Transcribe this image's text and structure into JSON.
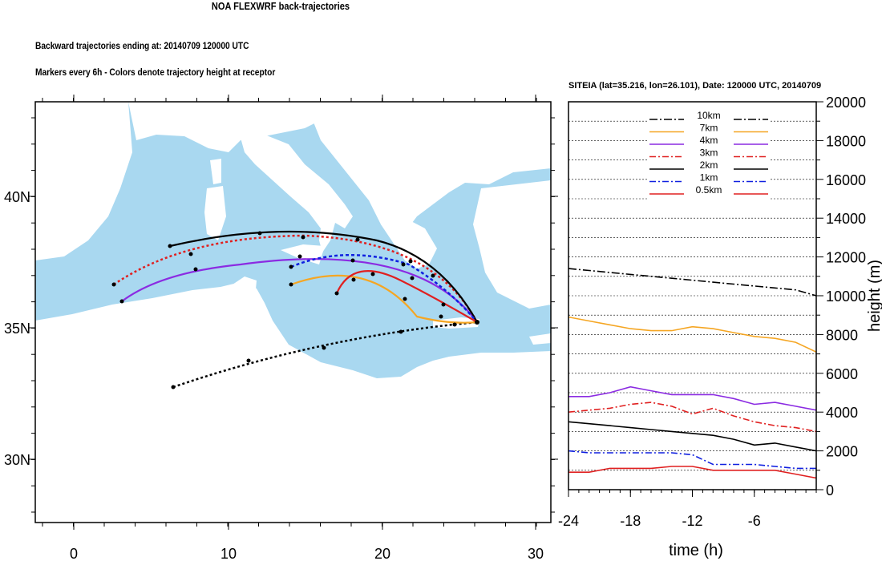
{
  "header": {
    "title": "NOA FLEXWRF back-trajectories",
    "line1": "Backward trajectories ending at: 20140709  120000 UTC",
    "line2": "Markers every 6h - Colors denote trajectory height at receptor"
  },
  "map": {
    "lon_ticks": [
      "0",
      "10",
      "20",
      "30"
    ],
    "lat_ticks": [
      "40N",
      "35N",
      "30N"
    ],
    "colors": {
      "sea": "#a9d8f0",
      "land": "#ffffff"
    }
  },
  "chart_data": {
    "type": "line",
    "title": "SITEIA (lat=35.216,  lon=26.101), Date: 120000 UTC, 20140709",
    "xlabel": "time (h)",
    "ylabel": "height (m)",
    "xlim": [
      -24,
      0
    ],
    "ylim": [
      0,
      20000
    ],
    "x_ticks": [
      "-24",
      "-18",
      "-12",
      "-6"
    ],
    "y_ticks": [
      "0",
      "2000",
      "4000",
      "6000",
      "8000",
      "10000",
      "12000",
      "14000",
      "16000",
      "18000",
      "20000"
    ],
    "grid": true,
    "legend": "top-center",
    "x": [
      -24,
      -22,
      -20,
      -18,
      -16,
      -14,
      -12,
      -10,
      -8,
      -6,
      -4,
      -2,
      0
    ],
    "series": [
      {
        "name": "10km",
        "color": "#000000",
        "dash": "10,3,2,3",
        "values": [
          11400,
          11300,
          11200,
          11100,
          11000,
          10900,
          10800,
          10700,
          10600,
          10500,
          10400,
          10300,
          10000
        ]
      },
      {
        "name": "7km",
        "color": "#f5a623",
        "dash": "",
        "values": [
          8900,
          8700,
          8500,
          8300,
          8200,
          8200,
          8400,
          8300,
          8100,
          7900,
          7800,
          7600,
          7100
        ]
      },
      {
        "name": "4km",
        "color": "#8b2be2",
        "dash": "",
        "values": [
          4800,
          4800,
          5000,
          5300,
          5100,
          4900,
          4900,
          4900,
          4700,
          4400,
          4500,
          4300,
          4100
        ]
      },
      {
        "name": "3km",
        "color": "#e02020",
        "dash": "8,3,2,3",
        "values": [
          4000,
          4100,
          4200,
          4400,
          4500,
          4300,
          3900,
          4200,
          3800,
          3500,
          3300,
          3200,
          3000
        ]
      },
      {
        "name": "2km",
        "color": "#000000",
        "dash": "",
        "values": [
          3500,
          3400,
          3300,
          3200,
          3100,
          3000,
          2900,
          2800,
          2600,
          2300,
          2400,
          2200,
          2000
        ]
      },
      {
        "name": "1km",
        "color": "#1020e0",
        "dash": "8,3,2,3",
        "values": [
          2000,
          1900,
          1900,
          1900,
          1900,
          1900,
          1800,
          1300,
          1300,
          1300,
          1200,
          1100,
          1100
        ]
      },
      {
        "name": "0.5km",
        "color": "#e02020",
        "dash": "",
        "values": [
          900,
          900,
          1100,
          1100,
          1100,
          1200,
          1200,
          1000,
          1000,
          1000,
          1000,
          800,
          600
        ]
      }
    ]
  }
}
